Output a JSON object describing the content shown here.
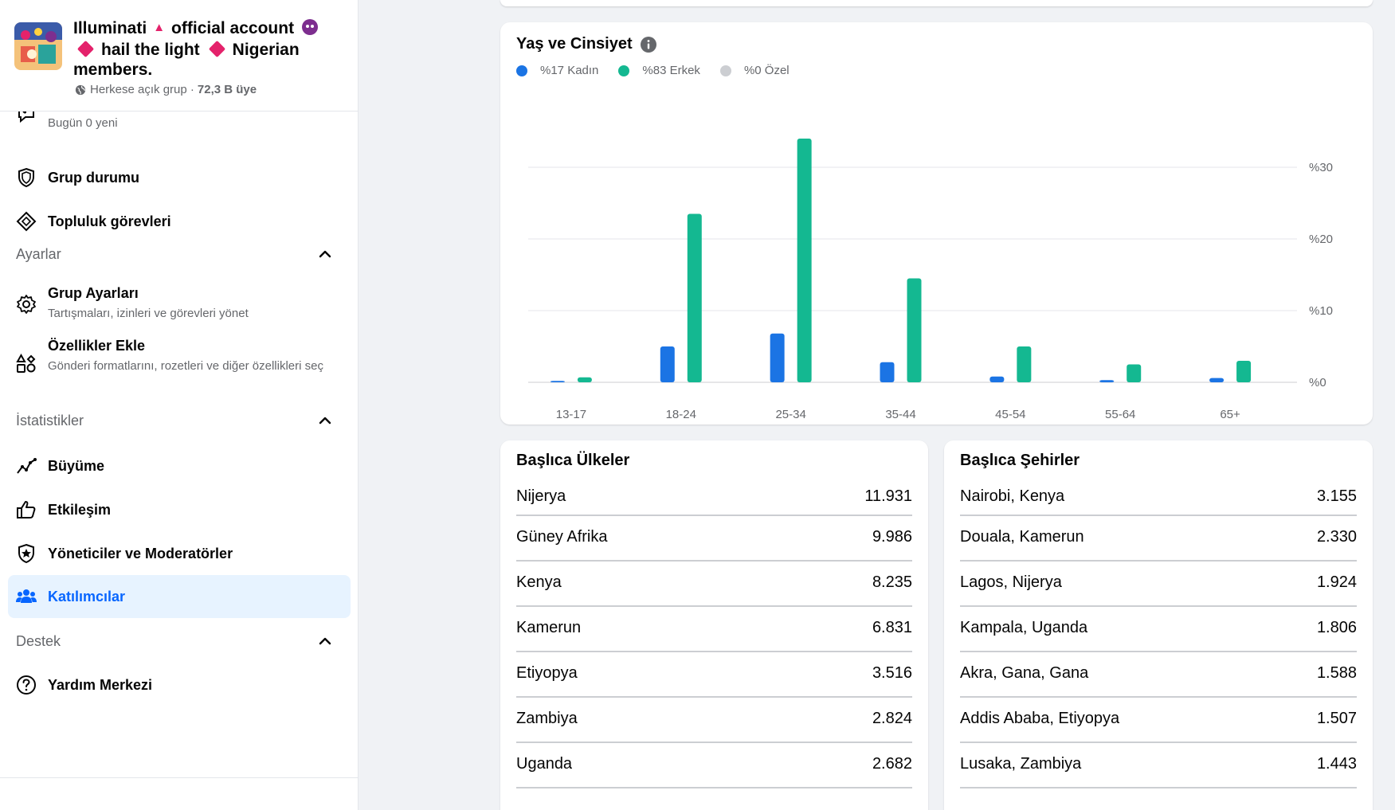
{
  "sidebar": {
    "group": {
      "name_part1": "Illuminati",
      "name_part2": "official account",
      "name_part3": "hail the light",
      "name_part4": "Nigerian",
      "name_part5": "members.",
      "privacy": "Herkese açık grup ·",
      "members": "72,3 B üye"
    },
    "partial_item_sub": "Bugün 0 yeni",
    "items_top": [
      {
        "label": "Grup durumu",
        "icon": "shield-icon"
      },
      {
        "label": "Topluluk görevleri",
        "icon": "diamond-icon"
      }
    ],
    "settings": {
      "title": "Ayarlar",
      "group_settings_label": "Grup Ayarları",
      "group_settings_sub": "Tartışmaları, izinleri ve görevleri yönet",
      "add_features_label": "Özellikler Ekle",
      "add_features_sub": "Gönderi formatlarını, rozetleri ve diğer özellikleri seç"
    },
    "insights": {
      "title": "İstatistikler",
      "items": [
        "Büyüme",
        "Etkileşim",
        "Yöneticiler ve Moderatörler",
        "Katılımcılar"
      ]
    },
    "support": {
      "title": "Destek",
      "help_center": "Yardım Merkezi"
    }
  },
  "age_gender": {
    "title": "Yaş ve Cinsiyet",
    "legend": [
      {
        "label": "%17 Kadın",
        "color": "#1b74e4"
      },
      {
        "label": "%83 Erkek",
        "color": "#14b891"
      },
      {
        "label": "%0 Özel",
        "color": "#ccced2"
      }
    ]
  },
  "chart_data": {
    "type": "bar",
    "categories": [
      "13-17",
      "18-24",
      "25-34",
      "35-44",
      "45-54",
      "55-64",
      "65+"
    ],
    "series": [
      {
        "name": "Kadın",
        "color": "#1b74e4",
        "values": [
          0.2,
          5.0,
          6.8,
          2.8,
          0.8,
          0.3,
          0.6
        ]
      },
      {
        "name": "Erkek",
        "color": "#14b891",
        "values": [
          0.7,
          23.5,
          34.0,
          14.5,
          5.0,
          2.5,
          3.0
        ]
      }
    ],
    "y_ticks": [
      "%0",
      "%10",
      "%20",
      "%30"
    ],
    "ylim": [
      0,
      30
    ],
    "grid": true
  },
  "countries": {
    "title": "Başlıca Ülkeler",
    "rows": [
      {
        "name": "Nijerya",
        "value": "11.931"
      },
      {
        "name": "Güney Afrika",
        "value": "9.986"
      },
      {
        "name": "Kenya",
        "value": "8.235"
      },
      {
        "name": "Kamerun",
        "value": "6.831"
      },
      {
        "name": "Etiyopya",
        "value": "3.516"
      },
      {
        "name": "Zambiya",
        "value": "2.824"
      },
      {
        "name": "Uganda",
        "value": "2.682"
      }
    ]
  },
  "cities": {
    "title": "Başlıca Şehirler",
    "rows": [
      {
        "name": "Nairobi, Kenya",
        "value": "3.155"
      },
      {
        "name": "Douala, Kamerun",
        "value": "2.330"
      },
      {
        "name": "Lagos, Nijerya",
        "value": "1.924"
      },
      {
        "name": "Kampala, Uganda",
        "value": "1.806"
      },
      {
        "name": "Akra, Gana, Gana",
        "value": "1.588"
      },
      {
        "name": "Addis Ababa, Etiyopya",
        "value": "1.507"
      },
      {
        "name": "Lusaka, Zambiya",
        "value": "1.443"
      }
    ]
  }
}
